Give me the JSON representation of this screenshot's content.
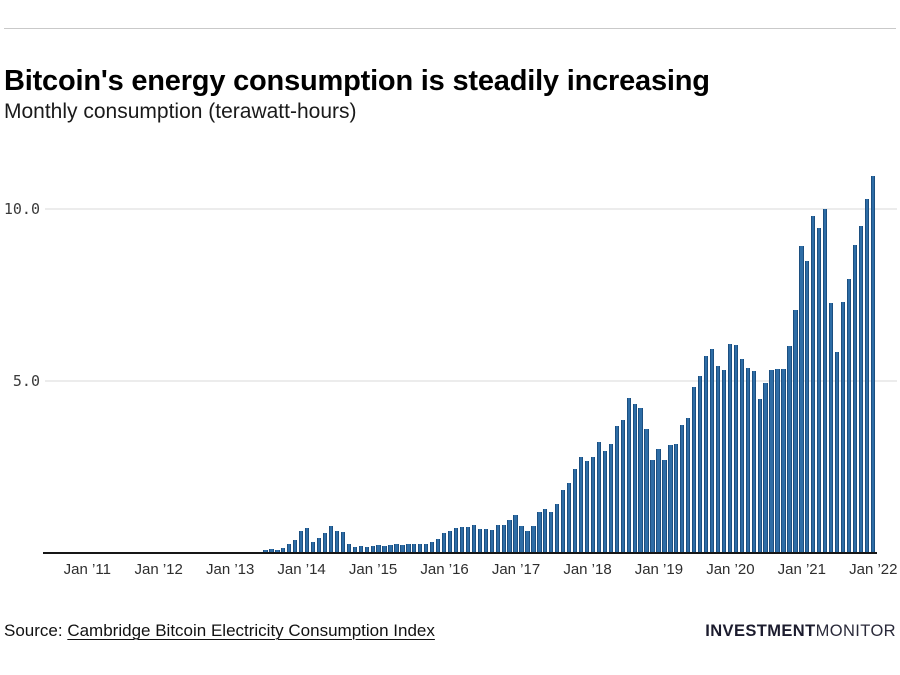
{
  "header": {
    "title": "Bitcoin's energy consumption is steadily increasing",
    "subtitle": "Monthly consumption (terawatt-hours)"
  },
  "footer": {
    "source_label": "Source:",
    "source_link": "Cambridge Bitcoin Electricity Consumption Index",
    "logo_bold": "INVESTMENT",
    "logo_light": "MONITOR"
  },
  "colors": {
    "bar_fill": "#2e6da6",
    "bar_edge": "#1c4f80",
    "gridline": "#ececec",
    "axis": "#161616"
  },
  "chart_data": {
    "type": "bar",
    "title": "Bitcoin's energy consumption is steadily increasing",
    "subtitle": "Monthly consumption (terawatt-hours)",
    "ylabel": "terawatt-hours per month",
    "xlabel": "",
    "frequency": "monthly",
    "grid": "horizontal",
    "legend": "none",
    "ylim": [
      0,
      11
    ],
    "y_ticks": [
      5,
      10
    ],
    "y_tick_labels": [
      "5.0",
      "10.0"
    ],
    "x_tick_labels": [
      "Jan ’11",
      "Jan ’12",
      "Jan ’13",
      "Jan ’14",
      "Jan ’15",
      "Jan ’16",
      "Jan ’17",
      "Jan ’18",
      "Jan ’19",
      "Jan ’20",
      "Jan ’21",
      "Jan ’22"
    ],
    "axis_start_month": "2010-06",
    "series_start_month": "2013-07",
    "series_end_month": "2022-01",
    "values": [
      0.06,
      0.1,
      0.05,
      0.12,
      0.22,
      0.35,
      0.62,
      0.71,
      0.3,
      0.4,
      0.54,
      0.76,
      0.6,
      0.58,
      0.24,
      0.16,
      0.18,
      0.16,
      0.18,
      0.2,
      0.18,
      0.2,
      0.22,
      0.2,
      0.22,
      0.24,
      0.22,
      0.24,
      0.28,
      0.38,
      0.54,
      0.62,
      0.69,
      0.73,
      0.73,
      0.79,
      0.68,
      0.68,
      0.63,
      0.78,
      0.8,
      0.92,
      1.08,
      0.75,
      0.6,
      0.77,
      1.15,
      1.25,
      1.15,
      1.41,
      1.81,
      2.01,
      2.41,
      2.76,
      2.64,
      2.75,
      3.19,
      2.95,
      3.14,
      3.65,
      3.85,
      4.47,
      4.31,
      4.18,
      3.57,
      2.69,
      3.0,
      2.67,
      3.1,
      3.15,
      3.68,
      3.9,
      4.8,
      5.13,
      5.71,
      5.89,
      5.42,
      5.29,
      6.06,
      6.03,
      5.62,
      5.35,
      5.26,
      4.45,
      4.9,
      5.29,
      5.33,
      5.33,
      6.0,
      7.03,
      8.91,
      8.45,
      9.78,
      9.42,
      9.96,
      7.24,
      5.81,
      7.26,
      7.94,
      8.94,
      9.49,
      10.25,
      10.92
    ]
  }
}
